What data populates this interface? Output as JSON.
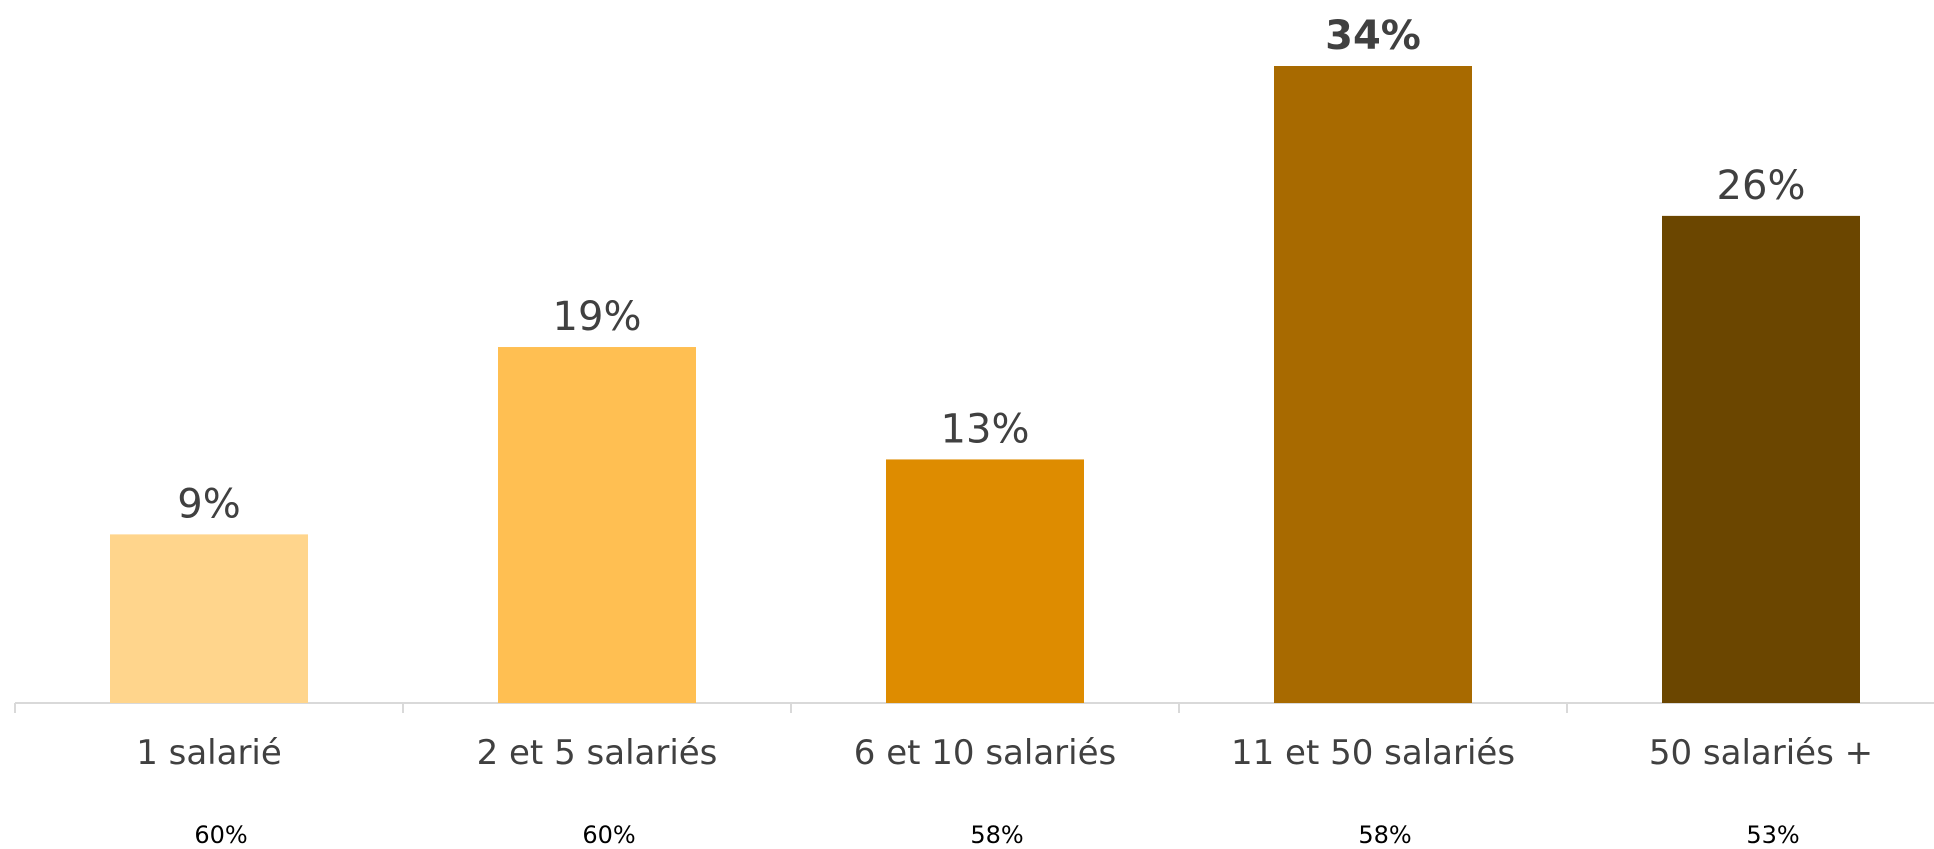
{
  "chart_data": {
    "type": "bar",
    "categories": [
      "1 salarié",
      "2 et 5 salariés",
      "6 et 10 salariés",
      "11 et 50 salariés",
      "50 salariés +"
    ],
    "values": [
      9,
      19,
      13,
      34,
      26
    ],
    "value_labels": [
      "9%",
      "19%",
      "13%",
      "34%",
      "26%"
    ],
    "secondary_labels": [
      "60%",
      "60%",
      "58%",
      "58%",
      "53%"
    ],
    "highlight_index": 3,
    "colors": [
      "#FFD58C",
      "#FFBF52",
      "#DE8C00",
      "#A86A00",
      "#6B4600"
    ],
    "axis_color": "#D9D9D9",
    "label_color": "#404040",
    "secondary_label_color": "#000000",
    "ylim": [
      0,
      34
    ],
    "grid": false,
    "legend": "none",
    "title": "",
    "xlabel": "",
    "ylabel": ""
  }
}
